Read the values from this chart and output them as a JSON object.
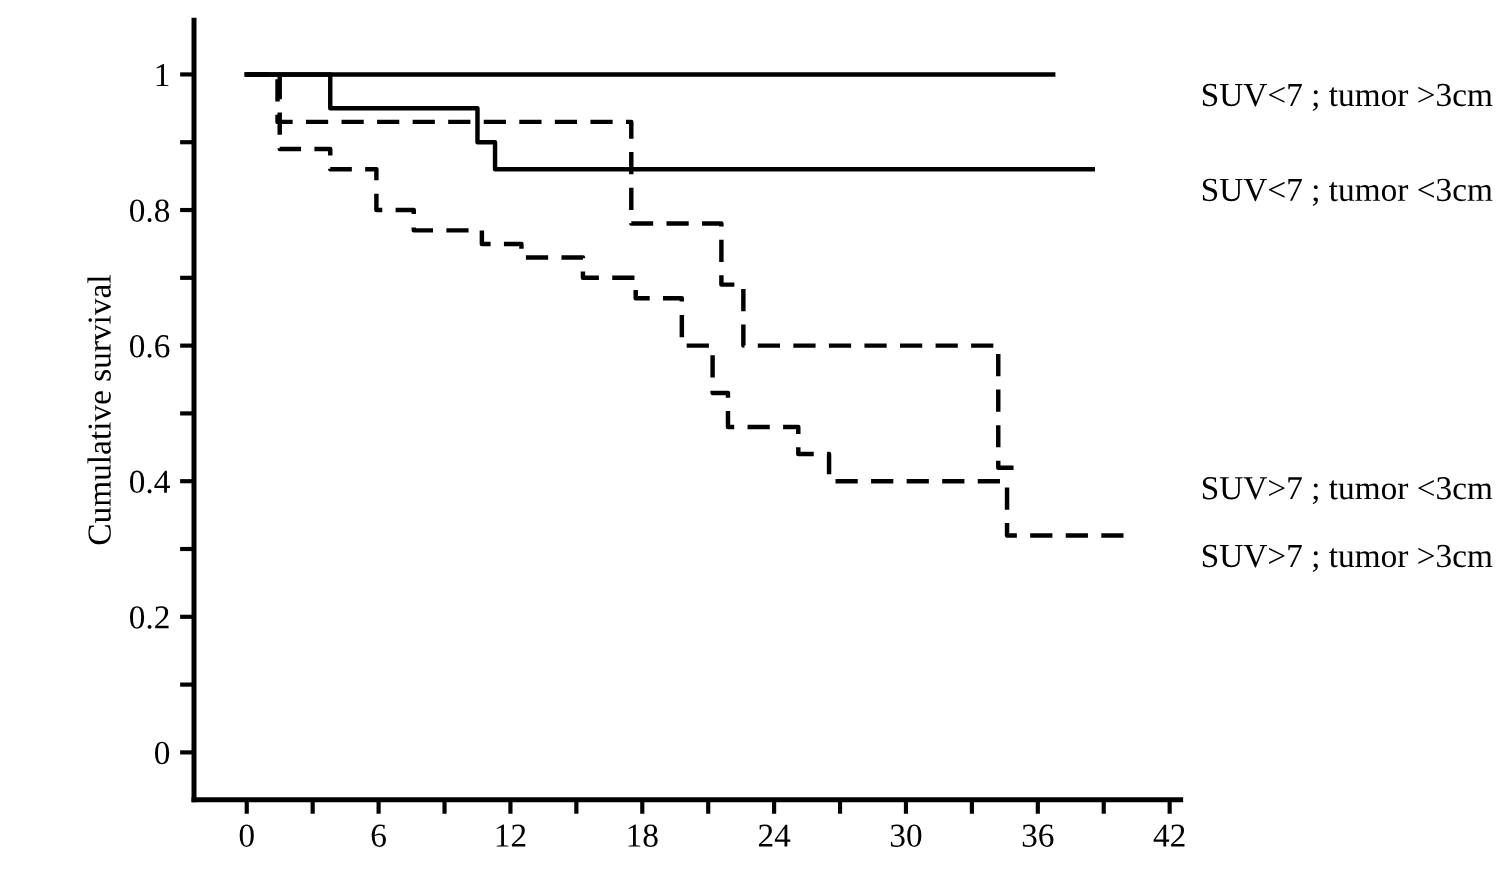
{
  "chart_data": {
    "type": "step",
    "ylabel": "Cumulative survival",
    "xlim": [
      -2.4,
      42.5
    ],
    "ylim": [
      -0.07,
      1.08
    ],
    "xticks": [
      0,
      {
        "value": 3,
        "label": null
      },
      6,
      {
        "value": 9,
        "label": null
      },
      12,
      {
        "value": 15,
        "label": null
      },
      18,
      {
        "value": 21,
        "label": null
      },
      24,
      {
        "value": 27,
        "label": null
      },
      30,
      {
        "value": 33,
        "label": null
      },
      36,
      {
        "value": 39,
        "label": null
      },
      42
    ],
    "yticks": [
      0,
      {
        "value": 0.1,
        "label": null
      },
      0.2,
      {
        "value": 0.3,
        "label": null
      },
      0.4,
      {
        "value": 0.5,
        "label": null
      },
      0.6,
      {
        "value": 0.7,
        "label": null
      },
      0.8,
      {
        "value": 0.9,
        "label": null
      },
      1
    ],
    "grid": false,
    "legend": false,
    "series": [
      {
        "name": "SUV<7 ; tumor >3cm",
        "color": "#000000",
        "line_style": "solid",
        "x": [
          0,
          36.7
        ],
        "values": [
          1,
          1
        ]
      },
      {
        "name": "SUV<7 ; tumor <3cm",
        "color": "#000000",
        "line_style": "solid",
        "x": [
          0,
          3.8,
          10.5,
          11.3,
          38.5
        ],
        "values": [
          1,
          0.95,
          0.9,
          0.86,
          0.86
        ]
      },
      {
        "name": "SUV>7 ; tumor <3cm",
        "color": "#000000",
        "line_style": "dashed",
        "x": [
          0,
          1.4,
          17.5,
          21.6,
          22.6,
          34.2,
          35
        ],
        "values": [
          1,
          0.93,
          0.78,
          0.69,
          0.6,
          0.42,
          0.42
        ]
      },
      {
        "name": "SUV>7 ; tumor >3cm",
        "color": "#000000",
        "line_style": "dashed",
        "x": [
          0,
          1.5,
          3.8,
          5.9,
          7.6,
          10.7,
          12.5,
          15.3,
          17.7,
          19.8,
          21.2,
          21.9,
          25.1,
          26.5,
          34.6,
          39.9
        ],
        "values": [
          1,
          0.89,
          0.86,
          0.8,
          0.77,
          0.75,
          0.73,
          0.7,
          0.67,
          0.6,
          0.53,
          0.48,
          0.44,
          0.4,
          0.32,
          0.32
        ]
      }
    ]
  }
}
